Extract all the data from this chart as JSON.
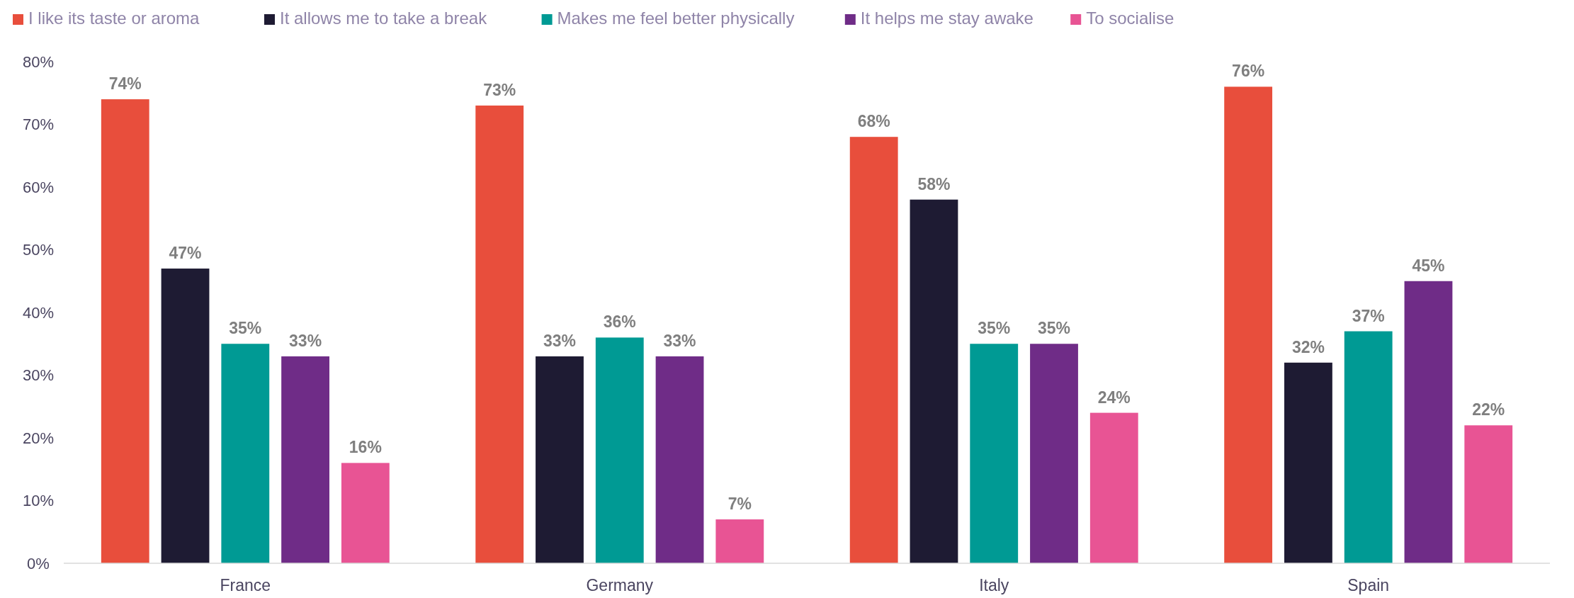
{
  "chart_data": {
    "type": "bar",
    "categories": [
      "France",
      "Germany",
      "Italy",
      "Spain"
    ],
    "series": [
      {
        "name": "I like its taste or aroma",
        "color": "#e84e3c",
        "values": [
          74,
          73,
          68,
          76
        ],
        "value_labels": [
          "74%",
          "73%",
          "68%",
          "76%"
        ]
      },
      {
        "name": "It allows me to take a break",
        "color": "#1e1b33",
        "values": [
          47,
          33,
          58,
          32
        ],
        "value_labels": [
          "47%",
          "33%",
          "58%",
          "32%"
        ]
      },
      {
        "name": "Makes me feel better physically",
        "color": "#009a94",
        "values": [
          35,
          36,
          35,
          37
        ],
        "value_labels": [
          "35%",
          "36%",
          "35%",
          "37%"
        ]
      },
      {
        "name": "It helps me stay awake",
        "color": "#6f2c87",
        "values": [
          33,
          33,
          35,
          45
        ],
        "value_labels": [
          "33%",
          "33%",
          "35%",
          "45%"
        ]
      },
      {
        "name": "To socialise",
        "color": "#e85494",
        "values": [
          16,
          7,
          24,
          22
        ],
        "value_labels": [
          "16%",
          "7%",
          "24%",
          "22%"
        ]
      }
    ],
    "ylim": [
      0,
      80
    ],
    "yticks": [
      {
        "value": 0,
        "label": "0%"
      },
      {
        "value": 10,
        "label": "10%"
      },
      {
        "value": 20,
        "label": "20%"
      },
      {
        "value": 30,
        "label": "30%"
      },
      {
        "value": 40,
        "label": "40%"
      },
      {
        "value": 50,
        "label": "50%"
      },
      {
        "value": 60,
        "label": "60%"
      },
      {
        "value": 70,
        "label": "70%"
      },
      {
        "value": 80,
        "label": "80%"
      }
    ],
    "grid": false,
    "legend": "top left"
  }
}
